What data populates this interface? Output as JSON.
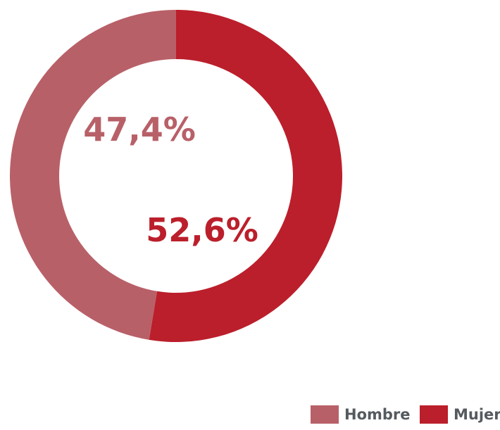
{
  "chart_data": {
    "type": "pie",
    "categories": [
      "Hombre",
      "Mujer"
    ],
    "values": [
      47.4,
      52.6
    ],
    "data_labels": [
      "47,4%",
      "52,6%"
    ],
    "colors": [
      "#b86068",
      "#bb1f2b"
    ],
    "legend": {
      "placement": "bottom-right",
      "entries": [
        "Hombre",
        "Mujer"
      ]
    }
  }
}
